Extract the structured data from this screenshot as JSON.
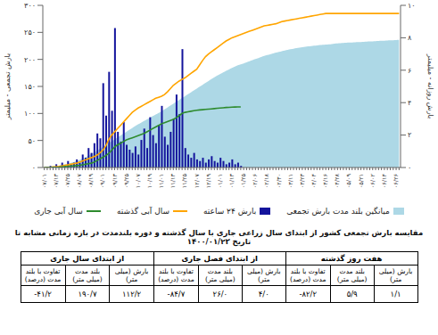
{
  "chart_data": {
    "type": "composed",
    "categories": [
      "۰۷/۰۱",
      null,
      null,
      null,
      "۰۷/۱۳",
      null,
      null,
      null,
      "۰۷/۲۵",
      null,
      null,
      null,
      "۰۸/۰۷",
      null,
      null,
      null,
      "۰۸/۱۹",
      null,
      null,
      null,
      "۰۹/۰۱",
      null,
      null,
      null,
      "۰۹/۱۳",
      null,
      null,
      null,
      "۰۹/۲۵",
      null,
      null,
      null,
      "۱۰/۰۷",
      null,
      null,
      null,
      "۱۰/۱۹",
      null,
      null,
      null,
      "۱۱/۰۱",
      null,
      null,
      null,
      "۱۱/۱۳",
      null,
      null,
      null,
      "۱۱/۲۵",
      null,
      null,
      null,
      "۱۲/۰۷",
      null,
      null,
      null,
      "۱۲/۱۹",
      null,
      null,
      null,
      "۰۱/۰۱",
      null,
      null,
      null,
      "۰۱/۱۳",
      null,
      null,
      null,
      "۰۱/۲۵",
      null,
      null,
      null,
      "۰۲/۰۶",
      null,
      null,
      null,
      "۰۲/۱۸",
      null,
      null,
      null,
      "۰۲/۳۰",
      null,
      null,
      null,
      "۰۳/۱۱",
      null,
      null,
      null,
      "۰۳/۲۳",
      null,
      null,
      null,
      "۰۴/۰۴",
      null,
      null,
      null,
      "۰۴/۱۶",
      null,
      null,
      null,
      "۰۴/۲۸",
      null,
      null,
      null,
      "۰۵/۰۹",
      null,
      null,
      null,
      "۰۵/۲۱",
      null,
      null,
      null,
      "۰۶/۰۲",
      null,
      null,
      null,
      "۰۶/۱۴",
      null,
      null,
      null,
      "۰۶/۲۶",
      null
    ],
    "ylabel": "بارش تجمعی - میلیمتر",
    "y2label": "بارش روزانه - میلیمتر",
    "ylim": [
      0,
      300
    ],
    "yticks": [
      {
        "value": 0,
        "label": "۰"
      },
      {
        "value": 50,
        "label": "۵۰"
      },
      {
        "value": 100,
        "label": "۱۰۰"
      },
      {
        "value": 150,
        "label": "۱۵۰"
      },
      {
        "value": 200,
        "label": "۲۰۰"
      },
      {
        "value": 250,
        "label": "۲۵۰"
      },
      {
        "value": 300,
        "label": "۳۰۰"
      }
    ],
    "y2lim": [
      0,
      10
    ],
    "y2ticks": [
      {
        "value": 0,
        "label": "۰"
      },
      {
        "value": 2,
        "label": "۲"
      },
      {
        "value": 4,
        "label": "۴"
      },
      {
        "value": 6,
        "label": "۶"
      },
      {
        "value": 8,
        "label": "۸"
      },
      {
        "value": 10,
        "label": "۱۰"
      }
    ],
    "grid": false,
    "legend": "bottom",
    "series": [
      {
        "name": "میانگین بلند مدت بارش تجمعی",
        "type": "area",
        "color": "#add8e6",
        "values": [
          0,
          0.5,
          1,
          1.8,
          2.6,
          3.5,
          4.5,
          5.6,
          7,
          8.5,
          10,
          12,
          14,
          16.5,
          19,
          22,
          25,
          28,
          31,
          34.5,
          38,
          41.5,
          45,
          48.5,
          52,
          55.5,
          59,
          62.5,
          66,
          69.5,
          73,
          76.5,
          80,
          83,
          86,
          89,
          92,
          95,
          98,
          101,
          104,
          107.5,
          111,
          114.5,
          118,
          121.5,
          125,
          128.5,
          132,
          135.5,
          139,
          142.5,
          146,
          149.5,
          153,
          156.5,
          160,
          163.5,
          167,
          170,
          173,
          176,
          179,
          181.5,
          184,
          186.5,
          189,
          190.7,
          192.5,
          194.5,
          196.5,
          198.5,
          200.5,
          202.5,
          204.5,
          206.5,
          208,
          209.5,
          211,
          212.5,
          214,
          215.3,
          216.5,
          217.7,
          218.8,
          219.8,
          220.8,
          221.7,
          222.5,
          223.3,
          224,
          224.7,
          225.3,
          225.9,
          226.5,
          227,
          227.5,
          228,
          228.5,
          229,
          229.4,
          229.8,
          230.2,
          230.6,
          231,
          231.3,
          231.6,
          231.9,
          232.2,
          232.5,
          232.8,
          233.1,
          233.4,
          233.7,
          234,
          234.3,
          234.6,
          234.9,
          235.2,
          235.5,
          235.8,
          236
        ]
      },
      {
        "name": "بارش ۲۴ ساعته",
        "type": "bar",
        "axis": "y2",
        "color": "#14149c",
        "values": [
          0,
          0,
          0.1,
          0,
          0.2,
          0,
          0.3,
          0.1,
          0.4,
          0.2,
          0.3,
          0.5,
          0.3,
          0.8,
          0.6,
          1.2,
          0.9,
          1.5,
          2.1,
          1.8,
          5.2,
          3.2,
          5.9,
          3.5,
          8.6,
          2.2,
          1.6,
          2.8,
          1.4,
          1.1,
          0.9,
          1.3,
          0.8,
          1.7,
          2.4,
          1.2,
          3.1,
          2,
          1.5,
          2.6,
          3.8,
          1.9,
          1.4,
          2.2,
          3,
          4.5,
          3.3,
          7.3,
          1.2,
          0.8,
          0.6,
          0.9,
          0.5,
          0.4,
          0.6,
          0.3,
          0.5,
          0.7,
          0.4,
          0.3,
          0.6,
          0.4,
          0.2,
          0.3,
          0.5,
          0.2,
          0.3,
          0.1,
          null,
          null,
          null,
          null,
          null,
          null,
          null,
          null,
          null,
          null,
          null,
          null,
          null,
          null,
          null,
          null,
          null,
          null,
          null,
          null,
          null,
          null,
          null,
          null,
          null,
          null,
          null,
          null,
          null,
          null,
          null,
          null,
          null,
          null,
          null,
          null,
          null,
          null,
          null,
          null,
          null,
          null,
          null,
          null,
          null,
          null,
          null,
          null,
          null,
          null,
          null,
          null,
          null,
          null
        ]
      },
      {
        "name": "سال آبی گذشته",
        "type": "line",
        "color": "#ffa500",
        "values": [
          0,
          0,
          0.5,
          1,
          1.5,
          2,
          3,
          4,
          5,
          6,
          7,
          8,
          10,
          12,
          14,
          16,
          18,
          20,
          23,
          27,
          32,
          40,
          52,
          60,
          66,
          72,
          78,
          84,
          90,
          96,
          102,
          106,
          110,
          113,
          116,
          119,
          122,
          125,
          128,
          130,
          132,
          135,
          140,
          146,
          152,
          156,
          160,
          163,
          166,
          170,
          174,
          178,
          182,
          190,
          198,
          205,
          210,
          214,
          218,
          222,
          226,
          230,
          234,
          237,
          240,
          242,
          244,
          246,
          248,
          250,
          252,
          254,
          256,
          258,
          260,
          262,
          263,
          264,
          265,
          266,
          268,
          270,
          271,
          272,
          273,
          274,
          275,
          276,
          277,
          278,
          279,
          280,
          281,
          282,
          283,
          284,
          285,
          285,
          285,
          285,
          285,
          285,
          285,
          285,
          285,
          285,
          285,
          285,
          285,
          285,
          285,
          285,
          285,
          285,
          285,
          285,
          285,
          285,
          285,
          285,
          285,
          285
        ]
      },
      {
        "name": "سال آبی جاری",
        "type": "line",
        "color": "#2e8b2e",
        "values": [
          0,
          0,
          0,
          0.2,
          0.4,
          0.6,
          1,
          1.5,
          2,
          2.5,
          3,
          3.5,
          4,
          5,
          6,
          7,
          8,
          10,
          13,
          16,
          19,
          22,
          26,
          32,
          38,
          42,
          45,
          48,
          51,
          53,
          55,
          57,
          59,
          61,
          63,
          66,
          69,
          72,
          75,
          78,
          81,
          83,
          85,
          87,
          89,
          92,
          96,
          100,
          102,
          103,
          104,
          105,
          106,
          106.5,
          107,
          107.5,
          108,
          108.5,
          109,
          109.5,
          110,
          110.5,
          111,
          111.3,
          111.6,
          111.9,
          112.1,
          112.2,
          null,
          null,
          null,
          null,
          null,
          null,
          null,
          null,
          null,
          null,
          null,
          null,
          null,
          null,
          null,
          null,
          null,
          null,
          null,
          null,
          null,
          null,
          null,
          null,
          null,
          null,
          null,
          null,
          null,
          null,
          null,
          null,
          null,
          null,
          null,
          null,
          null,
          null,
          null,
          null,
          null,
          null,
          null,
          null,
          null,
          null,
          null,
          null,
          null,
          null,
          null,
          null,
          null,
          null
        ]
      }
    ]
  },
  "caption": "مقایسه بارش تجمعی کشور از ابتدای سال زراعی جاری با سال گذشته و دوره بلندمدت در بازه زمانی مشابه تا تاریخ ۱۴۰۰/۰۱/۲۳",
  "table": {
    "groups": [
      {
        "title": "هفت روز گذشته",
        "columns": [
          "بارش (میلی متر)",
          "بلند مدت (میلی متر)",
          "تفاوت با بلند مدت (درصد)"
        ],
        "values": [
          "۱/۱",
          "۵/۹",
          "-۸۲/۲"
        ]
      },
      {
        "title": "از ابتدای فصل جاری",
        "columns": [
          "بارش (میلی متر)",
          "بلند مدت (میلی متر)",
          "تفاوت با بلند مدت (درصد)"
        ],
        "values": [
          "۴/۰",
          "۲۶/۰",
          "-۸۴/۷"
        ]
      },
      {
        "title": "از ابتدای سال جاری",
        "columns": [
          "بارش (میلی متر)",
          "بلند مدت (میلی متر)",
          "تفاوت با بلند مدت (درصد)"
        ],
        "values": [
          "۱۱۲/۲",
          "۱۹۰/۷",
          "-۴۱/۲"
        ]
      }
    ]
  }
}
